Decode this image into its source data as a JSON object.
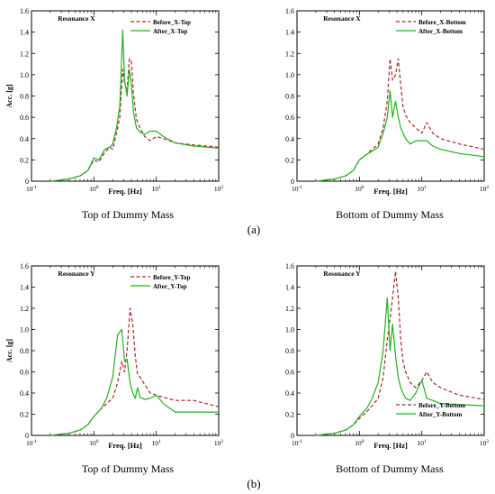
{
  "colors": {
    "before": "#a52a2a",
    "after": "#22b022",
    "axis": "#000000"
  },
  "panel_labels": {
    "a": "(a)",
    "b": "(b)"
  },
  "chart_data": [
    {
      "type": "line",
      "title": "Resonance X",
      "caption": "Top of Dummy Mass",
      "xlabel": "Freq. [Hz]",
      "ylabel": "Acc. [g]",
      "xscale": "log",
      "xlim": [
        0.1,
        100
      ],
      "ylim": [
        0,
        1.6
      ],
      "yticks": [
        "0",
        "0.2",
        "0.4",
        "0.6",
        "0.8",
        "1.0",
        "1.2",
        "1.4",
        "1.6"
      ],
      "xticks": [
        {
          "base": "10",
          "exp": "-1"
        },
        {
          "base": "10",
          "exp": "0"
        },
        {
          "base": "10",
          "exp": "1"
        },
        {
          "base": "10",
          "exp": "2"
        }
      ],
      "legend_position": "top-right",
      "series": [
        {
          "name": "Before_X-Top",
          "style": "dashed",
          "color": "#a52a2a",
          "x": [
            0.2,
            0.4,
            0.6,
            0.8,
            1.0,
            1.2,
            1.5,
            1.8,
            2.0,
            2.3,
            2.6,
            2.9,
            3.1,
            3.4,
            3.7,
            4.0,
            4.3,
            4.8,
            5.5,
            6.5,
            8,
            10,
            13,
            20,
            40,
            100
          ],
          "y": [
            0,
            0.02,
            0.05,
            0.1,
            0.2,
            0.18,
            0.27,
            0.32,
            0.3,
            0.45,
            0.6,
            1.05,
            0.92,
            0.85,
            1.15,
            1.12,
            0.82,
            0.58,
            0.5,
            0.42,
            0.38,
            0.42,
            0.4,
            0.36,
            0.34,
            0.32
          ]
        },
        {
          "name": "After_X-Top",
          "style": "solid",
          "color": "#22b022",
          "x": [
            0.2,
            0.4,
            0.6,
            0.8,
            1.0,
            1.2,
            1.5,
            1.8,
            2.0,
            2.3,
            2.6,
            2.9,
            3.1,
            3.4,
            3.7,
            4.0,
            4.3,
            4.8,
            5.5,
            6.5,
            8,
            10,
            13,
            20,
            40,
            100
          ],
          "y": [
            0,
            0.02,
            0.05,
            0.1,
            0.22,
            0.2,
            0.3,
            0.32,
            0.35,
            0.5,
            0.7,
            1.42,
            0.95,
            0.8,
            1.05,
            0.9,
            0.65,
            0.5,
            0.46,
            0.44,
            0.47,
            0.47,
            0.42,
            0.36,
            0.33,
            0.31
          ]
        }
      ]
    },
    {
      "type": "line",
      "title": "Resonance X",
      "caption": "Bottom of Dummy Mass",
      "xlabel": "Freq. [Hz]",
      "ylabel": "",
      "xscale": "log",
      "xlim": [
        0.1,
        100
      ],
      "ylim": [
        0,
        1.6
      ],
      "yticks": [
        "0",
        "0.2",
        "0.4",
        "0.6",
        "0.8",
        "1.0",
        "1.2",
        "1.4",
        "1.6"
      ],
      "xticks": [
        {
          "base": "10",
          "exp": "-1"
        },
        {
          "base": "10",
          "exp": "0"
        },
        {
          "base": "10",
          "exp": "1"
        },
        {
          "base": "10",
          "exp": "2"
        }
      ],
      "legend_position": "top-right",
      "series": [
        {
          "name": "Before_X-Bottom",
          "style": "dashed",
          "color": "#a52a2a",
          "x": [
            0.2,
            0.4,
            0.6,
            0.8,
            1.0,
            1.3,
            1.6,
            2.0,
            2.4,
            2.8,
            3.1,
            3.4,
            3.8,
            4.2,
            4.6,
            5.0,
            5.5,
            6.5,
            8,
            10,
            12,
            15,
            20,
            40,
            100
          ],
          "y": [
            0,
            0.02,
            0.05,
            0.1,
            0.2,
            0.25,
            0.3,
            0.35,
            0.5,
            0.75,
            1.15,
            0.95,
            1.0,
            1.15,
            0.9,
            0.7,
            0.62,
            0.55,
            0.5,
            0.45,
            0.55,
            0.45,
            0.4,
            0.35,
            0.3
          ]
        },
        {
          "name": "After_X-Bottom",
          "style": "solid",
          "color": "#22b022",
          "x": [
            0.2,
            0.4,
            0.6,
            0.8,
            1.0,
            1.3,
            1.6,
            2.0,
            2.4,
            2.8,
            3.1,
            3.4,
            3.8,
            4.2,
            4.6,
            5.0,
            5.5,
            6.5,
            8,
            10,
            12,
            15,
            20,
            40,
            100
          ],
          "y": [
            0,
            0.02,
            0.05,
            0.1,
            0.2,
            0.25,
            0.28,
            0.32,
            0.45,
            0.6,
            0.85,
            0.6,
            0.75,
            0.6,
            0.5,
            0.45,
            0.4,
            0.35,
            0.38,
            0.38,
            0.38,
            0.33,
            0.3,
            0.26,
            0.23
          ]
        }
      ]
    },
    {
      "type": "line",
      "title": "Resonance Y",
      "caption": "Top of Dummy Mass",
      "xlabel": "Freq. [Hz]",
      "ylabel": "Acc. [g]",
      "xscale": "log",
      "xlim": [
        0.1,
        100
      ],
      "ylim": [
        0,
        1.6
      ],
      "yticks": [
        "0",
        "0.2",
        "0.4",
        "0.6",
        "0.8",
        "1.0",
        "1.2",
        "1.4",
        "1.6"
      ],
      "xticks": [
        {
          "base": "10",
          "exp": "-1"
        },
        {
          "base": "10",
          "exp": "0"
        },
        {
          "base": "10",
          "exp": "1"
        },
        {
          "base": "10",
          "exp": "2"
        }
      ],
      "legend_position": "top-right",
      "series": [
        {
          "name": "Before_Y-Top",
          "style": "dashed",
          "color": "#a52a2a",
          "x": [
            0.2,
            0.4,
            0.6,
            0.8,
            1.0,
            1.3,
            1.6,
            2.0,
            2.4,
            2.8,
            3.1,
            3.4,
            3.8,
            4.2,
            4.6,
            5.0,
            5.5,
            6.5,
            8,
            10,
            13,
            20,
            40,
            100
          ],
          "y": [
            0,
            0.02,
            0.05,
            0.1,
            0.18,
            0.25,
            0.3,
            0.35,
            0.5,
            0.7,
            0.6,
            0.8,
            1.2,
            1.05,
            0.75,
            0.58,
            0.55,
            0.48,
            0.4,
            0.38,
            0.36,
            0.33,
            0.33,
            0.27
          ]
        },
        {
          "name": "After_Y-Top",
          "style": "solid",
          "color": "#22b022",
          "x": [
            0.2,
            0.4,
            0.6,
            0.8,
            1.0,
            1.3,
            1.6,
            2.0,
            2.4,
            2.8,
            3.1,
            3.4,
            3.8,
            4.2,
            4.6,
            5.0,
            5.5,
            6.5,
            8,
            10,
            13,
            20,
            40,
            100
          ],
          "y": [
            0,
            0.02,
            0.05,
            0.1,
            0.18,
            0.25,
            0.35,
            0.55,
            0.95,
            1.0,
            0.7,
            0.72,
            0.5,
            0.4,
            0.35,
            0.45,
            0.36,
            0.34,
            0.35,
            0.38,
            0.3,
            0.22,
            0.22,
            0.22
          ]
        }
      ]
    },
    {
      "type": "line",
      "title": "Resonance Y",
      "caption": "Bottom of Dummy Mass",
      "xlabel": "Freq. [Hz]",
      "ylabel": "",
      "xscale": "log",
      "xlim": [
        0.1,
        100
      ],
      "ylim": [
        0,
        1.6
      ],
      "yticks": [
        "0",
        "0.2",
        "0.4",
        "0.6",
        "0.8",
        "1.0",
        "1.2",
        "1.4",
        "1.6"
      ],
      "xticks": [
        {
          "base": "10",
          "exp": "-1"
        },
        {
          "base": "10",
          "exp": "0"
        },
        {
          "base": "10",
          "exp": "1"
        },
        {
          "base": "10",
          "exp": "2"
        }
      ],
      "legend_position": "bottom-right",
      "series": [
        {
          "name": "Before_Y-Bottom",
          "style": "dashed",
          "color": "#a52a2a",
          "x": [
            0.2,
            0.4,
            0.6,
            0.8,
            1.0,
            1.3,
            1.6,
            2.0,
            2.4,
            2.8,
            3.1,
            3.4,
            3.8,
            4.2,
            4.6,
            5.0,
            5.5,
            6.5,
            8,
            10,
            12,
            15,
            20,
            40,
            100
          ],
          "y": [
            0,
            0.02,
            0.05,
            0.1,
            0.16,
            0.22,
            0.28,
            0.35,
            0.55,
            0.9,
            1.1,
            1.3,
            1.55,
            1.3,
            0.9,
            0.7,
            0.6,
            0.5,
            0.45,
            0.52,
            0.6,
            0.5,
            0.45,
            0.38,
            0.34
          ]
        },
        {
          "name": "After_Y-Bottom",
          "style": "solid",
          "color": "#22b022",
          "x": [
            0.2,
            0.4,
            0.6,
            0.8,
            1.0,
            1.3,
            1.6,
            2.0,
            2.4,
            2.8,
            3.1,
            3.4,
            3.8,
            4.2,
            4.6,
            5.0,
            5.5,
            6.5,
            8,
            10,
            12,
            15,
            20,
            40,
            100
          ],
          "y": [
            0,
            0.02,
            0.05,
            0.1,
            0.18,
            0.25,
            0.35,
            0.5,
            0.8,
            1.3,
            0.8,
            1.05,
            0.75,
            0.55,
            0.45,
            0.4,
            0.35,
            0.33,
            0.4,
            0.52,
            0.35,
            0.33,
            0.3,
            0.29,
            0.28
          ]
        }
      ]
    }
  ]
}
